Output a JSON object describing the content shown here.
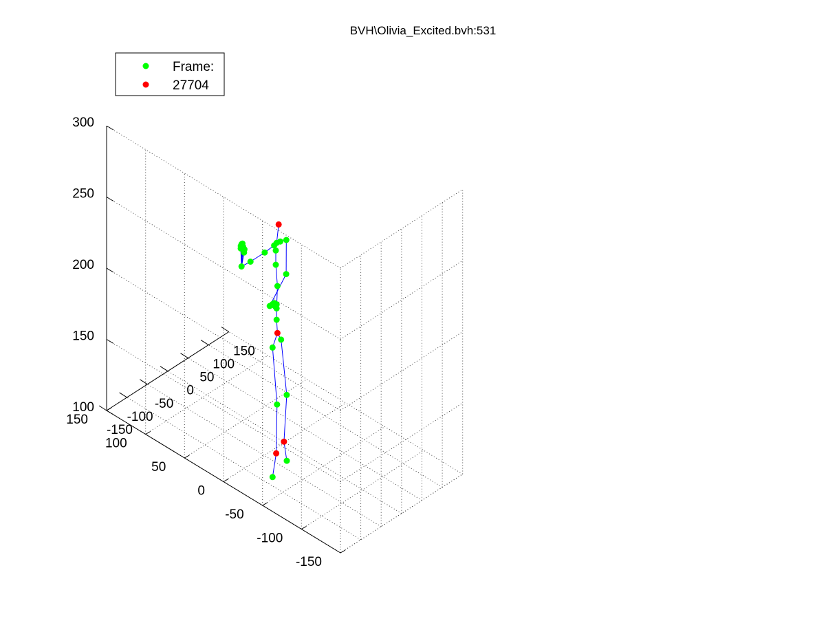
{
  "chart_data": {
    "type": "scatter",
    "subtype": "3d-skeleton",
    "title": "BVH\\Olivia_Excited.bvh:531",
    "xlabel": "",
    "ylabel": "",
    "zlabel": "",
    "xlim": [
      -150,
      150
    ],
    "ylim": [
      -150,
      150
    ],
    "zlim": [
      100,
      300
    ],
    "x_ticks": [
      "-150",
      "-100",
      "-50",
      "0",
      "50",
      "100",
      "150"
    ],
    "y_ticks": [
      "-150",
      "-100",
      "-50",
      "0",
      "50",
      "100",
      "150"
    ],
    "z_ticks": [
      "100",
      "150",
      "200",
      "250",
      "300"
    ],
    "grid": true,
    "legend": {
      "placement": "top-left",
      "entries": [
        {
          "label": "Frame:",
          "color": "#00ff00"
        },
        {
          "label": "27704",
          "color": "#ff0000"
        }
      ]
    },
    "colors": {
      "joint": "#00ff00",
      "highlight": "#ff0000",
      "bone": "#0000ff",
      "grid": "#444444"
    },
    "series": [
      {
        "name": "Frame:",
        "color": "#00ff00",
        "points": [
          {
            "id": "neck",
            "x": -12,
            "y": 4,
            "z": 241
          },
          {
            "id": "lclav",
            "x": -20,
            "y": 3,
            "z": 241
          },
          {
            "id": "lsh",
            "x": -45,
            "y": 2,
            "z": 241
          },
          {
            "id": "lel",
            "x": -80,
            "y": 2,
            "z": 241
          },
          {
            "id": "lwr",
            "x": -100,
            "y": 3,
            "z": 241
          },
          {
            "id": "lh1",
            "x": -102,
            "y": 3,
            "z": 254
          },
          {
            "id": "lh2",
            "x": -100,
            "y": 4,
            "z": 255
          },
          {
            "id": "lh3",
            "x": -98,
            "y": 4,
            "z": 256
          },
          {
            "id": "lh4",
            "x": -96,
            "y": 4,
            "z": 256
          },
          {
            "id": "lh5",
            "x": -96,
            "y": 3,
            "z": 254
          },
          {
            "id": "lh6",
            "x": -92,
            "y": 4,
            "z": 249
          },
          {
            "id": "lh7",
            "x": -91,
            "y": 4,
            "z": 251
          },
          {
            "id": "rclav",
            "x": -5,
            "y": 3,
            "z": 241
          },
          {
            "id": "rsh",
            "x": 8,
            "y": 2,
            "z": 240
          },
          {
            "id": "rel",
            "x": 19,
            "y": 8,
            "z": 212
          },
          {
            "id": "rwr",
            "x": 15,
            "y": 27,
            "z": 184
          },
          {
            "id": "rh1",
            "x": 22,
            "y": 27,
            "z": 184
          },
          {
            "id": "rh2",
            "x": 26,
            "y": 27,
            "z": 184
          },
          {
            "id": "rh3",
            "x": 29,
            "y": 27,
            "z": 183
          },
          {
            "id": "rh4",
            "x": 32,
            "y": 27,
            "z": 182
          },
          {
            "id": "rh5",
            "x": 29,
            "y": 27,
            "z": 181
          },
          {
            "id": "rh6",
            "x": 27,
            "y": 27,
            "z": 182
          },
          {
            "id": "sp4",
            "x": -14,
            "y": 4,
            "z": 236
          },
          {
            "id": "sp3",
            "x": -14,
            "y": 4,
            "z": 226
          },
          {
            "id": "sp2",
            "x": -12,
            "y": 3,
            "z": 211
          },
          {
            "id": "sp1",
            "x": -12,
            "y": 4,
            "z": 195
          },
          {
            "id": "sp0",
            "x": -12,
            "y": 4,
            "z": 187
          },
          {
            "id": "lhip",
            "x": -24,
            "y": 3,
            "z": 170
          },
          {
            "id": "lknee",
            "x": -13,
            "y": 3,
            "z": 128
          },
          {
            "id": "rhip",
            "x": -1,
            "y": 4,
            "z": 171
          },
          {
            "id": "rknee",
            "x": 9,
            "y": 2,
            "z": 131
          },
          {
            "id": "ltoe",
            "x": -24,
            "y": 3,
            "z": 79
          },
          {
            "id": "rtoe",
            "x": 11,
            "y": 3,
            "z": 84
          }
        ]
      },
      {
        "name": "27704",
        "color": "#ff0000",
        "points": [
          {
            "id": "head",
            "x": -7,
            "y": 4,
            "z": 253
          },
          {
            "id": "hips",
            "x": -12,
            "y": 3,
            "z": 178
          },
          {
            "id": "lankle",
            "x": -15,
            "y": 3,
            "z": 94
          },
          {
            "id": "rankle",
            "x": 6,
            "y": 4,
            "z": 98
          }
        ]
      }
    ],
    "bones": [
      [
        "hips",
        "sp0"
      ],
      [
        "sp0",
        "sp1"
      ],
      [
        "sp1",
        "sp2"
      ],
      [
        "sp2",
        "sp3"
      ],
      [
        "sp3",
        "sp4"
      ],
      [
        "sp4",
        "neck"
      ],
      [
        "neck",
        "head"
      ],
      [
        "neck",
        "lclav"
      ],
      [
        "lclav",
        "lsh"
      ],
      [
        "lsh",
        "lel"
      ],
      [
        "lel",
        "lwr"
      ],
      [
        "lwr",
        "lh1"
      ],
      [
        "lwr",
        "lh2"
      ],
      [
        "lwr",
        "lh3"
      ],
      [
        "lwr",
        "lh4"
      ],
      [
        "lwr",
        "lh5"
      ],
      [
        "lwr",
        "lh6"
      ],
      [
        "lwr",
        "lh7"
      ],
      [
        "neck",
        "rclav"
      ],
      [
        "rclav",
        "rsh"
      ],
      [
        "rsh",
        "rel"
      ],
      [
        "rel",
        "rwr"
      ],
      [
        "rwr",
        "rh1"
      ],
      [
        "rwr",
        "rh2"
      ],
      [
        "rwr",
        "rh3"
      ],
      [
        "rwr",
        "rh4"
      ],
      [
        "rwr",
        "rh5"
      ],
      [
        "rwr",
        "rh6"
      ],
      [
        "hips",
        "lhip"
      ],
      [
        "lhip",
        "lknee"
      ],
      [
        "lknee",
        "lankle"
      ],
      [
        "lankle",
        "ltoe"
      ],
      [
        "hips",
        "rhip"
      ],
      [
        "rhip",
        "rknee"
      ],
      [
        "rknee",
        "rankle"
      ],
      [
        "rankle",
        "rtoe"
      ]
    ]
  }
}
